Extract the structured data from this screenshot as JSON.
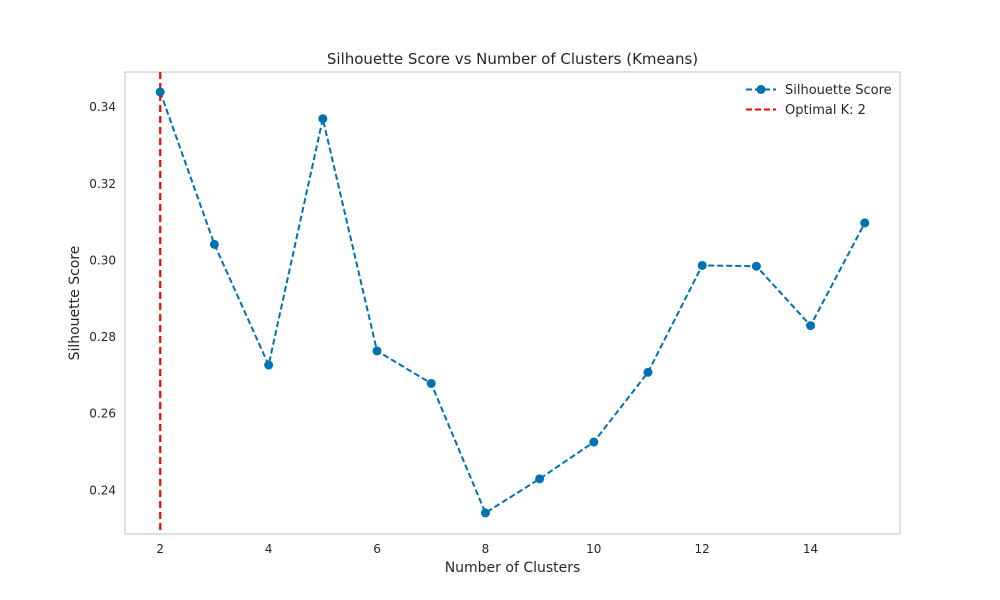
{
  "chart_data": {
    "type": "line",
    "title": "Silhouette Score vs Number of Clusters (Kmeans)",
    "xlabel": "Number of Clusters",
    "ylabel": "Silhouette Score",
    "xlim": [
      1.35,
      15.65
    ],
    "ylim": [
      0.2286,
      0.3492
    ],
    "xticks": [
      2,
      4,
      6,
      8,
      10,
      12,
      14
    ],
    "yticks": [
      0.24,
      0.26,
      0.28,
      0.3,
      0.32,
      0.34
    ],
    "ytick_labels": [
      "0.24",
      "0.26",
      "0.28",
      "0.30",
      "0.32",
      "0.34"
    ],
    "grid": false,
    "legend_position": "top-right",
    "series": [
      {
        "name": "Silhouette Score",
        "color": "#0072b2",
        "style": "dashed-with-markers",
        "x": [
          2,
          3,
          4,
          5,
          6,
          7,
          8,
          9,
          10,
          11,
          12,
          13,
          14,
          15
        ],
        "y": [
          0.344,
          0.3042,
          0.2727,
          0.337,
          0.2764,
          0.2679,
          0.2341,
          0.243,
          0.2526,
          0.2708,
          0.2987,
          0.2985,
          0.283,
          0.3098
        ]
      }
    ],
    "reference_line": {
      "name": "Optimal K: 2",
      "x": 2,
      "color": "#ff0000",
      "style": "dashed-vertical"
    }
  }
}
